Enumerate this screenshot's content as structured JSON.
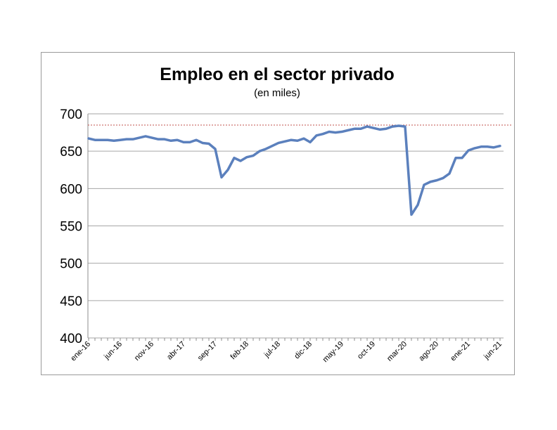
{
  "chart_data": {
    "type": "line",
    "title": "Empleo en el sector privado",
    "subtitle": "(en miles)",
    "xlabel": "",
    "ylabel": "",
    "ylim": [
      400,
      700
    ],
    "yticks": [
      400,
      450,
      500,
      550,
      600,
      650,
      700
    ],
    "grid": true,
    "legend": "none",
    "line_color": "#5b80bd",
    "reference_line": {
      "value": 685,
      "color": "#c0504d",
      "style": "dotted"
    },
    "x": [
      "ene-16",
      "feb-16",
      "mar-16",
      "abr-16",
      "may-16",
      "jun-16",
      "jul-16",
      "ago-16",
      "sep-16",
      "oct-16",
      "nov-16",
      "dic-16",
      "ene-17",
      "feb-17",
      "mar-17",
      "abr-17",
      "may-17",
      "jun-17",
      "jul-17",
      "ago-17",
      "sep-17",
      "oct-17",
      "nov-17",
      "dic-17",
      "ene-18",
      "feb-18",
      "mar-18",
      "abr-18",
      "may-18",
      "jun-18",
      "jul-18",
      "ago-18",
      "sep-18",
      "oct-18",
      "nov-18",
      "dic-18",
      "ene-19",
      "feb-19",
      "mar-19",
      "abr-19",
      "may-19",
      "jun-19",
      "jul-19",
      "ago-19",
      "sep-19",
      "oct-19",
      "nov-19",
      "dic-19",
      "ene-20",
      "feb-20",
      "mar-20",
      "abr-20",
      "may-20",
      "jun-20",
      "jul-20",
      "ago-20",
      "sep-20",
      "oct-20",
      "nov-20",
      "dic-20",
      "ene-21",
      "feb-21",
      "mar-21",
      "abr-21",
      "may-21",
      "jun-21"
    ],
    "xtick_labels": [
      "ene-16",
      "jun-16",
      "nov-16",
      "abr-17",
      "sep-17",
      "feb-18",
      "jul-18",
      "dic-18",
      "may-19",
      "oct-19",
      "mar-20",
      "ago-20",
      "ene-21",
      "jun-21"
    ],
    "series": [
      {
        "values": [
          667,
          665,
          665,
          665,
          664,
          665,
          666,
          666,
          668,
          670,
          668,
          666,
          666,
          664,
          665,
          662,
          662,
          665,
          661,
          660,
          653,
          615,
          625,
          641,
          637,
          642,
          644,
          650,
          653,
          657,
          661,
          663,
          665,
          664,
          667,
          662,
          671,
          673,
          676,
          675,
          676,
          678,
          680,
          680,
          683,
          681,
          679,
          680,
          683,
          684,
          683,
          565,
          578,
          605,
          609,
          611,
          614,
          620,
          641,
          641,
          651,
          654,
          656,
          656,
          655,
          657
        ]
      }
    ]
  }
}
